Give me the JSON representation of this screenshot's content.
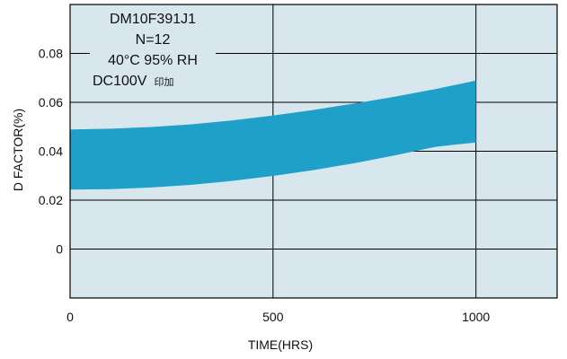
{
  "chart_data": {
    "type": "area",
    "xlabel": "TIME(HRS)",
    "ylabel": "D FACTOR(%)",
    "xlim": [
      0,
      1200
    ],
    "ylim": [
      -0.02,
      0.1
    ],
    "x_ticks": [
      0,
      500,
      1000
    ],
    "x_tick_labels": [
      "0",
      "500",
      "1000"
    ],
    "y_ticks": [
      0,
      0.02,
      0.04,
      0.06,
      0.08
    ],
    "y_tick_labels": [
      "0",
      "0.02",
      "0.04",
      "0.06",
      "0.08"
    ],
    "grid": true,
    "plot_background": "#d8e6ee",
    "band_color": "#1fa0c8",
    "band": {
      "x": [
        0,
        100,
        200,
        300,
        400,
        500,
        600,
        700,
        800,
        900,
        1000
      ],
      "upper": [
        0.0489,
        0.0492,
        0.0499,
        0.051,
        0.0526,
        0.0546,
        0.0569,
        0.0595,
        0.0623,
        0.0654,
        0.0689
      ],
      "lower": [
        0.0243,
        0.0245,
        0.0252,
        0.0263,
        0.0279,
        0.0299,
        0.0323,
        0.0351,
        0.0383,
        0.0418,
        0.0436
      ]
    },
    "annotation": {
      "lines": [
        "DM10F391J1",
        "N=12",
        "40°C 95% RH",
        "DC100V"
      ],
      "suffix": "印加"
    }
  }
}
